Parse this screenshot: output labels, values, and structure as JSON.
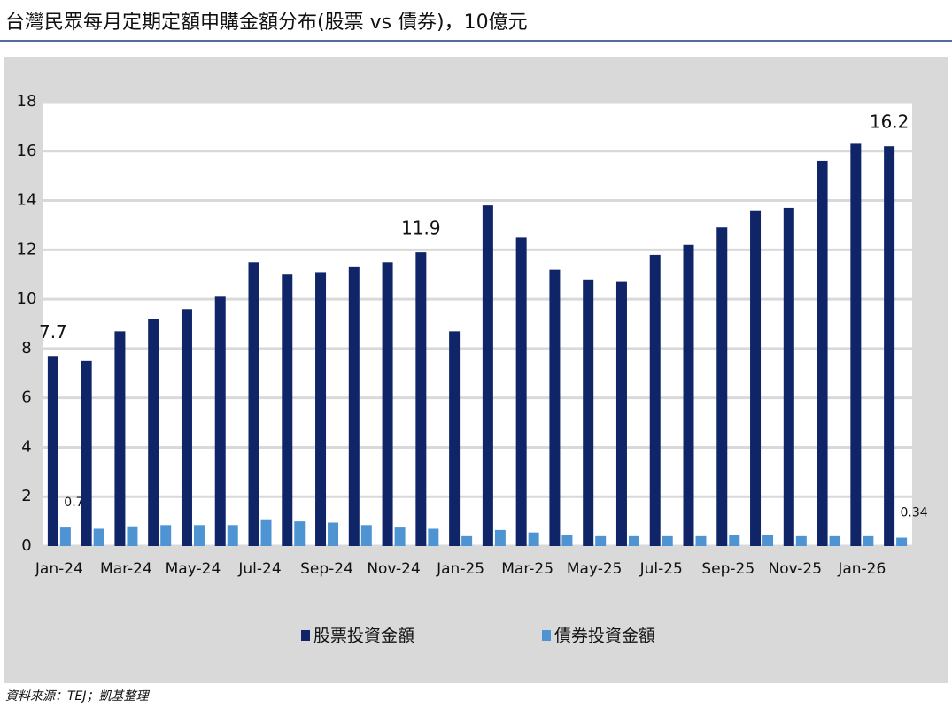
{
  "chart_data": {
    "type": "bar",
    "title": "台灣民眾每月定期定額申購金額分布(股票 vs 債券)，10億元",
    "source": "資料來源：TEJ；凱基整理",
    "categories": [
      "Jan-24",
      null,
      "Mar-24",
      null,
      "May-24",
      null,
      "Jul-24",
      null,
      "Sep-24",
      null,
      "Nov-24",
      null,
      "Jan-25",
      null,
      "Mar-25",
      null,
      "May-25",
      null,
      "Jul-25",
      null,
      "Sep-25",
      null,
      "Nov-25",
      null,
      "Jan-26",
      null
    ],
    "series": [
      {
        "name": "股票投資金額",
        "color": "#0f2568",
        "values": [
          7.7,
          7.5,
          8.7,
          9.2,
          9.6,
          10.1,
          11.5,
          11.0,
          11.1,
          11.3,
          11.5,
          11.9,
          8.7,
          13.8,
          12.5,
          11.2,
          10.8,
          10.7,
          11.8,
          12.2,
          12.9,
          13.6,
          13.7,
          15.6,
          16.3,
          16.2
        ],
        "value_labels": [
          "7.7",
          null,
          null,
          null,
          null,
          null,
          null,
          null,
          null,
          null,
          null,
          "11.9",
          null,
          null,
          null,
          null,
          null,
          null,
          null,
          null,
          null,
          null,
          null,
          null,
          null,
          "16.2"
        ]
      },
      {
        "name": "債券投資金額",
        "color": "#4f94d2",
        "values": [
          0.75,
          0.7,
          0.8,
          0.85,
          0.85,
          0.85,
          1.05,
          1.0,
          0.95,
          0.85,
          0.75,
          0.7,
          0.4,
          0.65,
          0.55,
          0.45,
          0.4,
          0.4,
          0.4,
          0.4,
          0.45,
          0.45,
          0.4,
          0.4,
          0.4,
          0.34
        ],
        "value_labels": [
          "0.75",
          null,
          null,
          null,
          null,
          null,
          null,
          null,
          null,
          null,
          null,
          null,
          null,
          null,
          null,
          null,
          null,
          null,
          null,
          null,
          null,
          null,
          null,
          null,
          null,
          "0.34"
        ]
      }
    ],
    "ylim": [
      0,
      18
    ],
    "yticks": [
      0,
      2,
      4,
      6,
      8,
      10,
      12,
      14,
      16,
      18
    ],
    "grid": true,
    "legend": "bottom"
  }
}
